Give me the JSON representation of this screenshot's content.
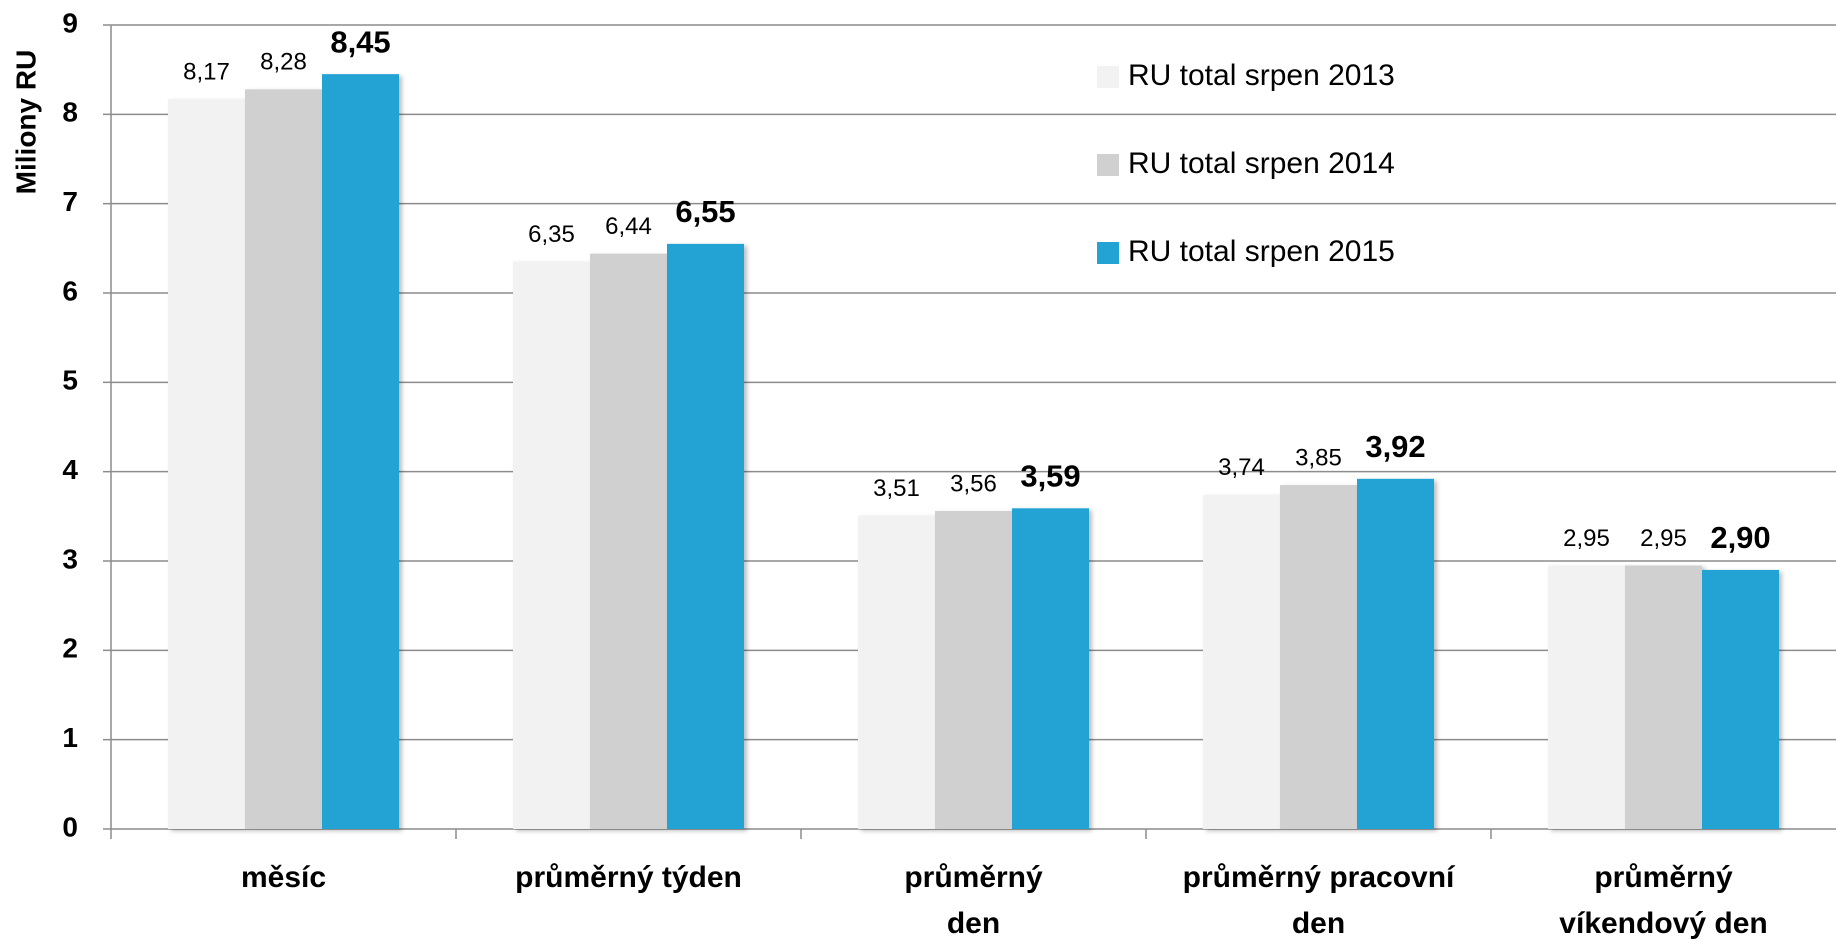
{
  "chart_data": {
    "type": "bar",
    "y_label": "Miliony RU",
    "categories": [
      "měsíc",
      "průměrný týden",
      "průměrný\nden",
      "průměrný pracovní\nden",
      "průměrný\nvíkendový den"
    ],
    "series": [
      {
        "name": "RU total srpen 2013",
        "color": "#f2f2f2",
        "values": [
          8.17,
          6.35,
          3.51,
          3.74,
          2.95
        ],
        "value_labels": [
          "8,17",
          "6,35",
          "3,51",
          "3,74",
          "2,95"
        ]
      },
      {
        "name": "RU total srpen 2014",
        "color": "#d0d0d0",
        "values": [
          8.28,
          6.44,
          3.56,
          3.85,
          2.95
        ],
        "value_labels": [
          "8,28",
          "6,44",
          "3,56",
          "3,85",
          "2,95"
        ]
      },
      {
        "name": "RU total srpen 2015",
        "color": "#23a3d3",
        "values": [
          8.45,
          6.55,
          3.59,
          3.92,
          2.9
        ],
        "value_labels": [
          "8,45",
          "6,55",
          "3,59",
          "3,92",
          "2,90"
        ]
      }
    ],
    "ylim": [
      0,
      9
    ],
    "yticks": [
      0,
      1,
      2,
      3,
      4,
      5,
      6,
      7,
      8,
      9
    ],
    "grid": true
  }
}
